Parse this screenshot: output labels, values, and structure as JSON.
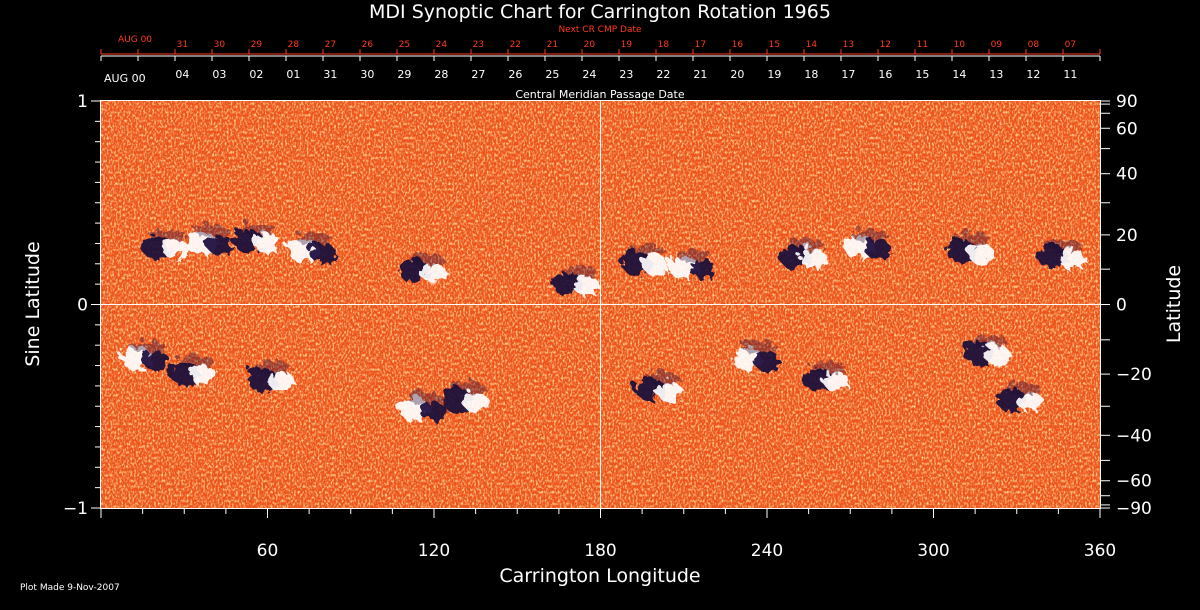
{
  "chart_data": {
    "type": "heatmap",
    "title": "MDI Synoptic Chart for Carrington Rotation 1965",
    "xlabel": "Carrington Longitude",
    "ylabel_left": "Sine Latitude",
    "ylabel_right": "Latitude",
    "xlim": [
      0,
      360
    ],
    "ylim": [
      -1,
      1
    ],
    "x_ticks": [
      "60",
      "120",
      "180",
      "240",
      "300",
      "360"
    ],
    "x_tick_values": [
      60,
      120,
      180,
      240,
      300,
      360
    ],
    "y_left_ticks": [
      "1",
      "0",
      "−1"
    ],
    "y_left_tick_values": [
      1,
      0,
      -1
    ],
    "y_right_ticks": [
      "90",
      "60",
      "40",
      "20",
      "0",
      "−20",
      "−40",
      "−60",
      "−90"
    ],
    "y_right_tick_values": [
      90,
      60,
      40,
      20,
      0,
      -20,
      -40,
      -60,
      -90
    ],
    "top_axis_red": {
      "label": "Next CR CMP Date",
      "start_label": "AUG 00",
      "dates": [
        "31",
        "30",
        "29",
        "28",
        "27",
        "26",
        "25",
        "24",
        "23",
        "22",
        "21",
        "20",
        "19",
        "18",
        "17",
        "16",
        "15",
        "14",
        "13",
        "12",
        "11",
        "10",
        "09",
        "08",
        "07"
      ]
    },
    "top_axis_white": {
      "label": "Central Meridian Passage Date",
      "start_label": "AUG 00",
      "dates": [
        "04",
        "03",
        "02",
        "01",
        "31",
        "30",
        "29",
        "28",
        "27",
        "26",
        "25",
        "24",
        "23",
        "22",
        "21",
        "20",
        "19",
        "18",
        "17",
        "16",
        "15",
        "14",
        "13",
        "12",
        "11"
      ]
    },
    "colorscale": {
      "positive": "#ffffff",
      "neutral": "#f0531a",
      "negative": "#1a0a3a"
    },
    "active_regions": [
      {
        "lon": 22,
        "sinlat": 0.3,
        "white_first": false
      },
      {
        "lon": 38,
        "sinlat": 0.32,
        "white_first": true
      },
      {
        "lon": 55,
        "sinlat": 0.33,
        "white_first": false
      },
      {
        "lon": 75,
        "sinlat": 0.28,
        "white_first": true
      },
      {
        "lon": 115,
        "sinlat": 0.18,
        "white_first": false
      },
      {
        "lon": 170,
        "sinlat": 0.12,
        "white_first": false
      },
      {
        "lon": 195,
        "sinlat": 0.22,
        "white_first": false
      },
      {
        "lon": 212,
        "sinlat": 0.2,
        "white_first": true
      },
      {
        "lon": 252,
        "sinlat": 0.25,
        "white_first": false
      },
      {
        "lon": 275,
        "sinlat": 0.3,
        "white_first": true
      },
      {
        "lon": 312,
        "sinlat": 0.28,
        "white_first": false
      },
      {
        "lon": 345,
        "sinlat": 0.25,
        "white_first": false
      },
      {
        "lon": 15,
        "sinlat": -0.25,
        "white_first": true
      },
      {
        "lon": 32,
        "sinlat": -0.32,
        "white_first": false
      },
      {
        "lon": 60,
        "sinlat": -0.35,
        "white_first": false
      },
      {
        "lon": 115,
        "sinlat": -0.5,
        "white_first": true
      },
      {
        "lon": 130,
        "sinlat": -0.45,
        "white_first": false
      },
      {
        "lon": 200,
        "sinlat": -0.4,
        "white_first": false
      },
      {
        "lon": 235,
        "sinlat": -0.25,
        "white_first": true
      },
      {
        "lon": 260,
        "sinlat": -0.35,
        "white_first": false
      },
      {
        "lon": 318,
        "sinlat": -0.22,
        "white_first": false
      },
      {
        "lon": 330,
        "sinlat": -0.45,
        "white_first": false
      }
    ]
  },
  "footer": {
    "plot_made": "Plot Made  9-Nov-2007"
  }
}
